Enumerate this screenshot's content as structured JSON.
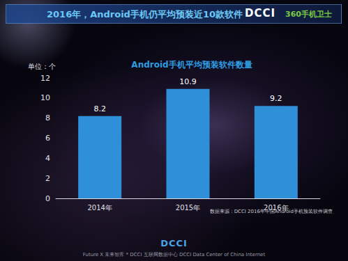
{
  "page": {
    "header": "2016年，Android手机仍平均预装近10款软件",
    "logo": "DCCI",
    "logo_text": "360手机卫士",
    "footer_logo": "DCCI",
    "footer": "Future X 未来智库 * DCCI 互联网数据中心 DCCI Data Center of China Internet"
  },
  "chart_data": {
    "type": "bar",
    "title": "Android手机平均预装软件数量",
    "ylabel": "单位：个",
    "categories": [
      "2014年",
      "2015年",
      "2016年"
    ],
    "values": [
      8.2,
      10.9,
      9.2
    ],
    "color": "#2f8fd8",
    "ylim": [
      0,
      12
    ],
    "yticks": [
      0,
      2,
      4,
      6,
      8,
      10,
      12
    ],
    "grid": false,
    "data_labels": true,
    "annotations": [
      "数据来源：DCCI 2016年中国Android手机预装软件调查"
    ]
  }
}
